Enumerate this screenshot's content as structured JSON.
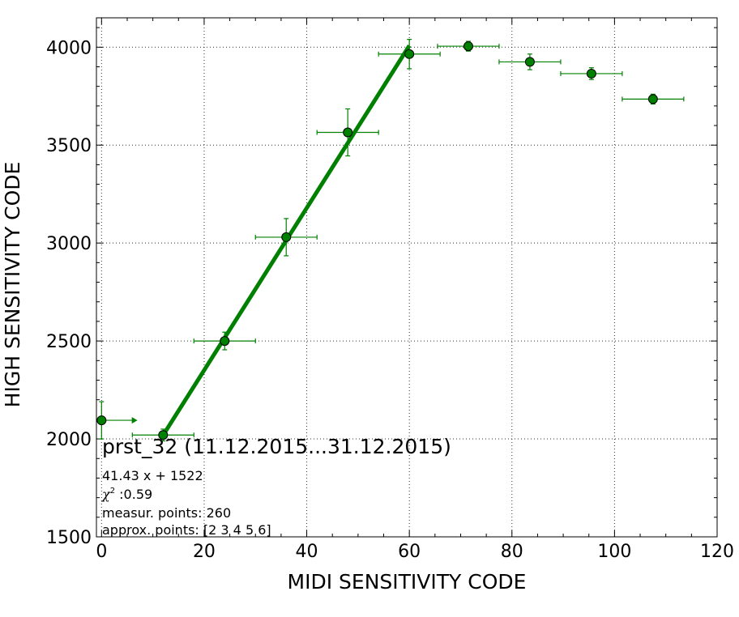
{
  "chart_data": {
    "type": "scatter",
    "title": "",
    "xlabel": "MIDI SENSITIVITY CODE",
    "ylabel": "HIGH SENSITIVITY CODE",
    "xlim": [
      -1,
      120
    ],
    "ylim": [
      1500,
      4150
    ],
    "x_ticks": [
      0,
      20,
      40,
      60,
      80,
      100,
      120
    ],
    "y_ticks": [
      1500,
      2000,
      2500,
      3000,
      3500,
      4000
    ],
    "grid": true,
    "colors": {
      "series": "#008000",
      "marker_edge": "#000000"
    },
    "series": [
      {
        "points": [
          {
            "x": 0,
            "y": 2095,
            "xerr": 6,
            "yerr": 95,
            "xerr_style": "upper-limit-arrow"
          },
          {
            "x": 12,
            "y": 2020,
            "xerr": 6,
            "yerr": 30
          },
          {
            "x": 24,
            "y": 2500,
            "xerr": 6,
            "yerr": 45
          },
          {
            "x": 36,
            "y": 3030,
            "xerr": 6,
            "yerr": 95
          },
          {
            "x": 48,
            "y": 3565,
            "xerr": 6,
            "yerr": 120
          },
          {
            "x": 60,
            "y": 3965,
            "xerr": 6,
            "yerr": 75
          },
          {
            "x": 71.5,
            "y": 4005,
            "xerr": 6,
            "yerr": 25
          },
          {
            "x": 83.5,
            "y": 3925,
            "xerr": 6,
            "yerr": 40
          },
          {
            "x": 95.5,
            "y": 3865,
            "xerr": 6,
            "yerr": 30
          },
          {
            "x": 107.5,
            "y": 3735,
            "xerr": 6,
            "yerr": 25
          }
        ]
      }
    ],
    "fit": {
      "slope": 41.43,
      "intercept": 1522,
      "x_range": [
        12,
        60
      ]
    },
    "annotation": {
      "title": "prst_32 (11.12.2015...31.12.2015)",
      "equation": "41.43 x + 1522",
      "chi_symbol": "χ",
      "chi_sup": "2",
      "chi_value": " :0.59",
      "measur": "measur. points: 260",
      "approx": "approx. points: [2 3 4 5 6]"
    }
  }
}
